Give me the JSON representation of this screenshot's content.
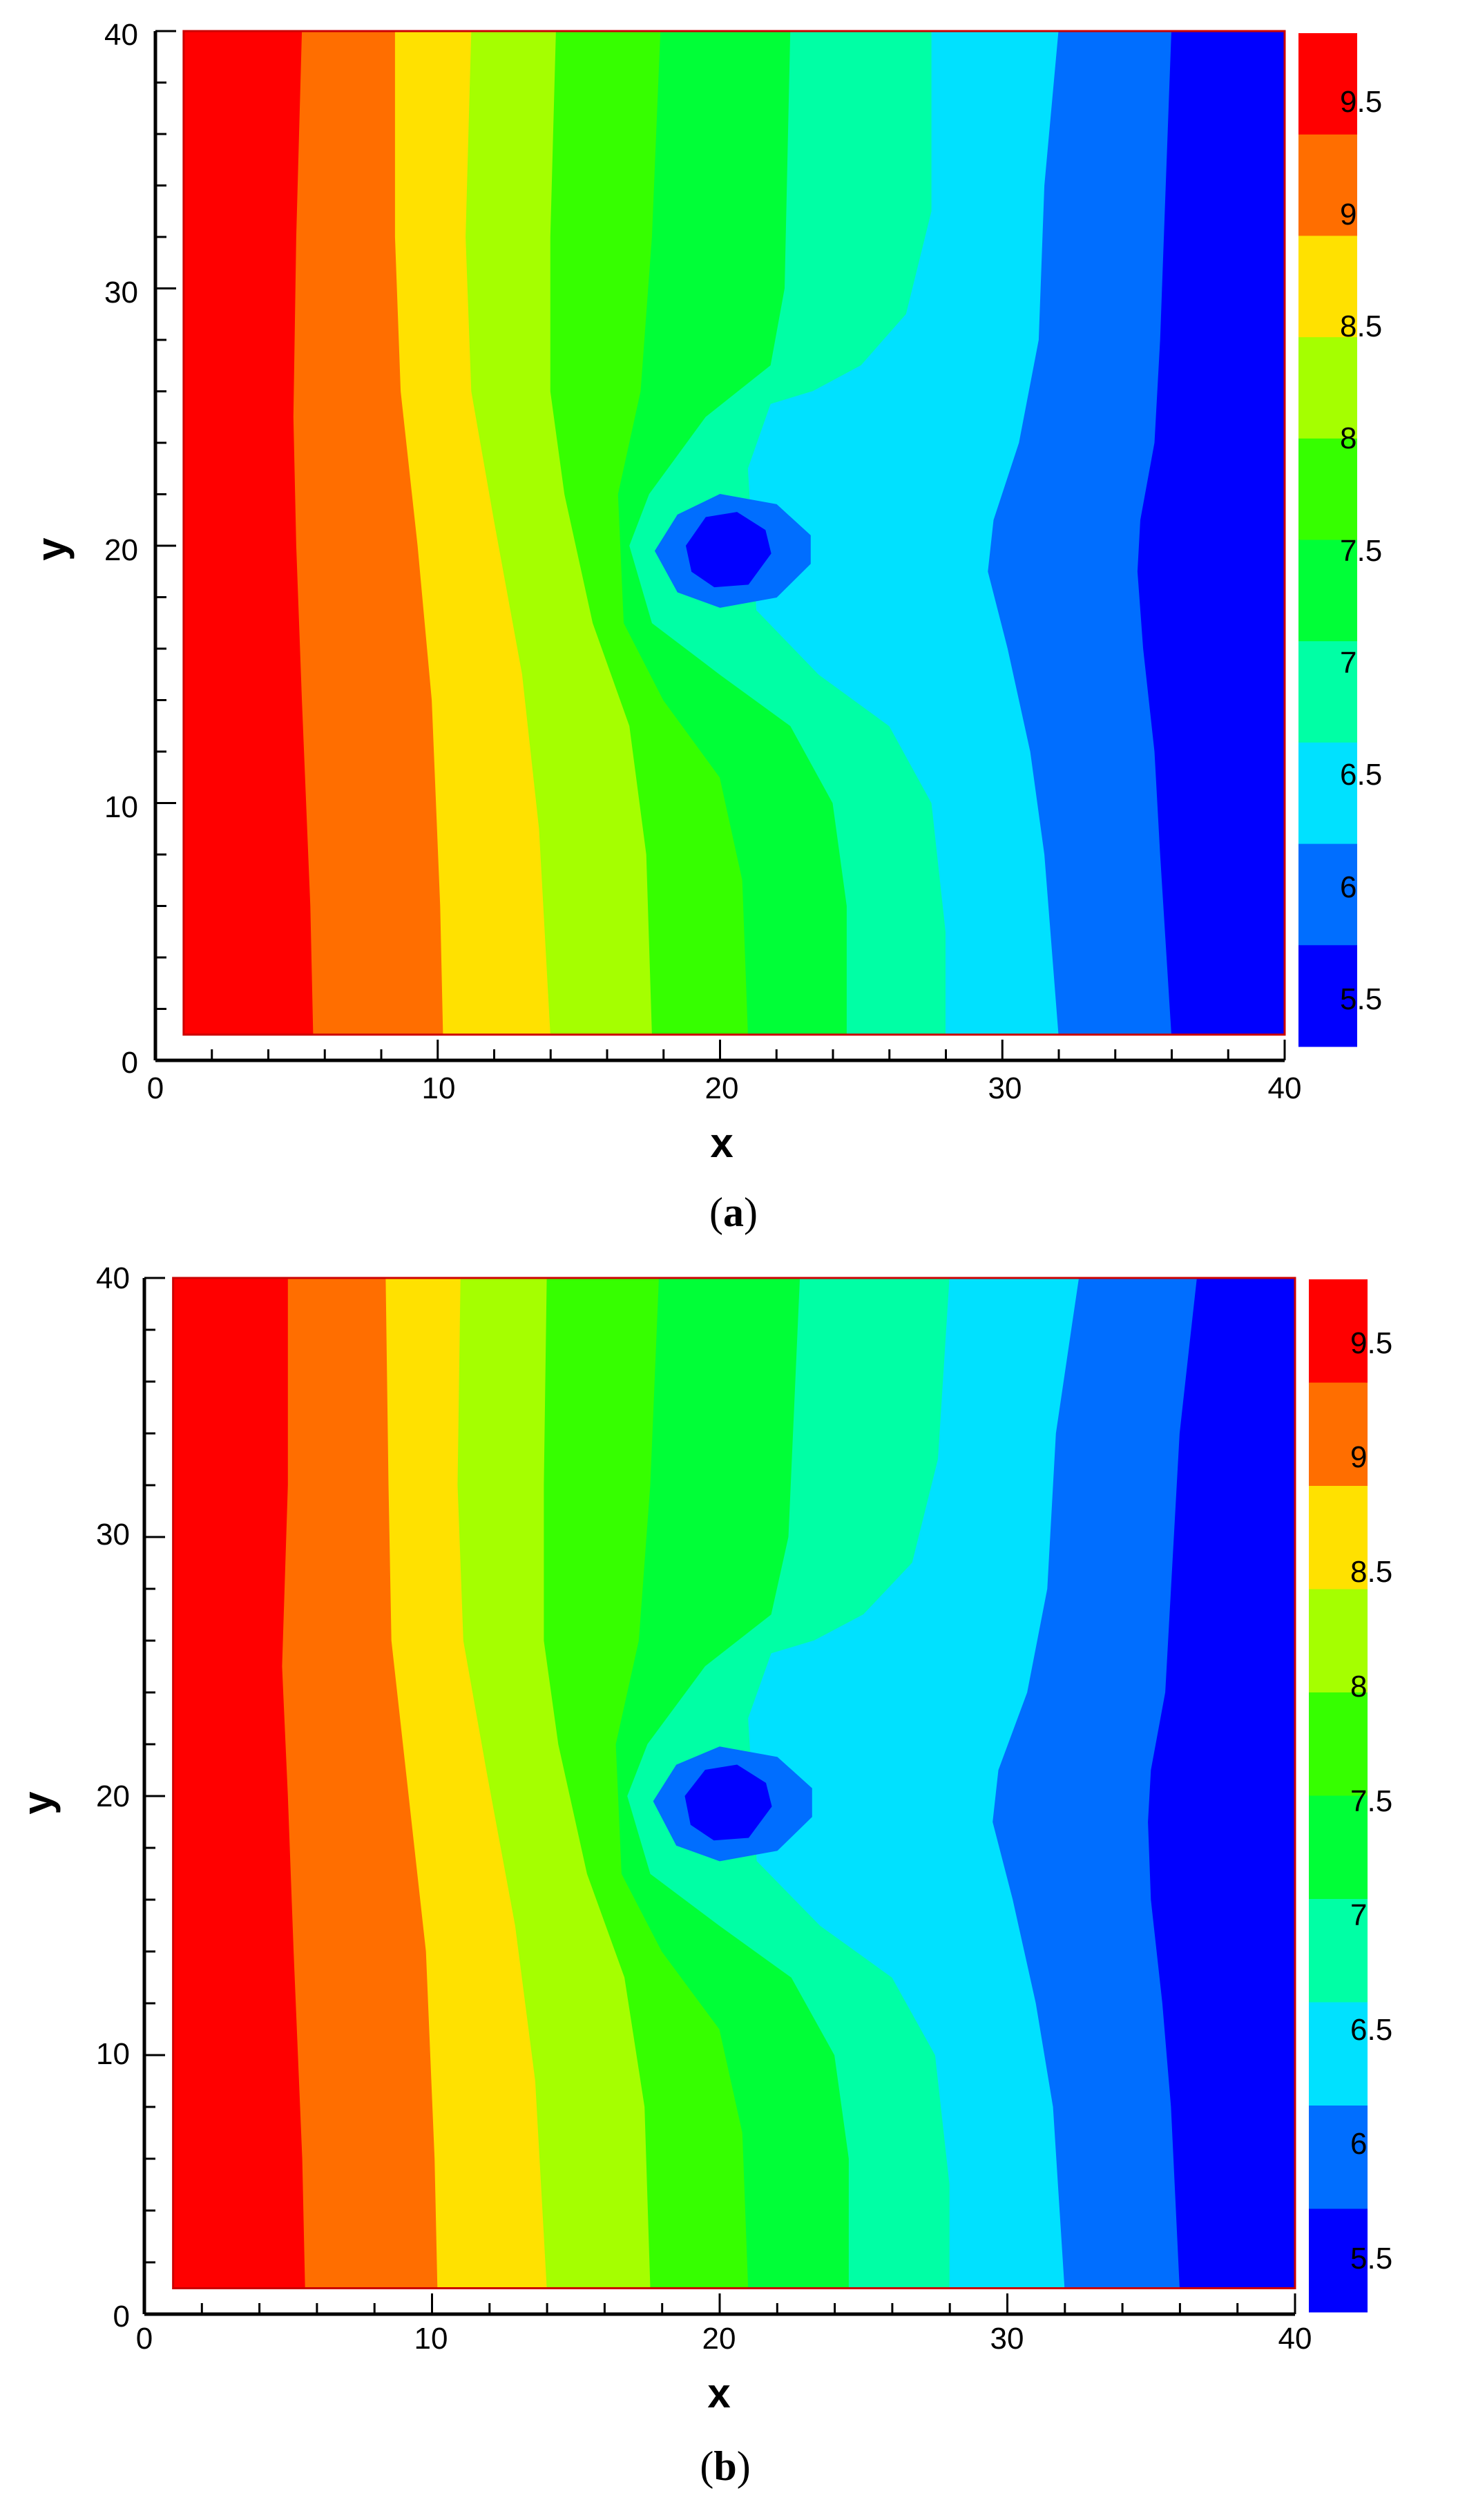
{
  "chart_data": [
    {
      "type": "contour",
      "caption_letter": "a",
      "xlabel": "x",
      "ylabel": "y",
      "xlim": [
        0,
        40
      ],
      "ylim": [
        0,
        40
      ],
      "domain": {
        "x": [
          1,
          40
        ],
        "y": [
          1,
          40
        ]
      },
      "x_ticks": [
        "0",
        "10",
        "20",
        "30",
        "40"
      ],
      "y_ticks": [
        "0",
        "10",
        "20",
        "30",
        "40"
      ],
      "legend_labels": [
        "9.5",
        "9",
        "8.5",
        "8",
        "7.5",
        "7",
        "6.5",
        "6",
        "5.5"
      ],
      "legend_placement": "right",
      "levels": [
        5.25,
        5.5,
        5.75,
        6,
        6.25,
        6.5,
        6.75,
        7,
        7.25,
        7.5,
        7.75,
        8,
        8.25,
        8.5,
        8.75,
        9,
        9.25,
        9.5,
        9.75
      ],
      "colors": [
        "#0000ff",
        "#006eff",
        "#00e1ff",
        "#00ffa5",
        "#00ff37",
        "#36ff00",
        "#a5ff00",
        "#ffe100",
        "#ff6e00",
        "#ff0000"
      ],
      "boundaries": [
        {
          "level": 9.5,
          "points": [
            [
              5.2,
              40
            ],
            [
              5.0,
              32
            ],
            [
              4.9,
              25
            ],
            [
              5.0,
              20
            ],
            [
              5.2,
              14
            ],
            [
              5.5,
              6
            ],
            [
              5.6,
              1
            ]
          ]
        },
        {
          "level": 9.0,
          "points": [
            [
              8.5,
              40
            ],
            [
              8.5,
              32
            ],
            [
              8.7,
              26
            ],
            [
              9.3,
              20
            ],
            [
              9.8,
              14
            ],
            [
              10.1,
              6
            ],
            [
              10.2,
              1
            ]
          ]
        },
        {
          "level": 8.5,
          "points": [
            [
              11.2,
              40
            ],
            [
              11.0,
              32
            ],
            [
              11.2,
              26
            ],
            [
              12.0,
              21
            ],
            [
              13.0,
              15
            ],
            [
              13.6,
              9
            ],
            [
              14.0,
              1
            ]
          ]
        },
        {
          "level": 8.0,
          "points": [
            [
              14.2,
              40
            ],
            [
              14.0,
              32
            ],
            [
              14.0,
              26
            ],
            [
              14.5,
              22
            ],
            [
              15.5,
              17
            ],
            [
              16.8,
              13
            ],
            [
              17.4,
              8
            ],
            [
              17.6,
              1
            ]
          ]
        },
        {
          "level": 7.5,
          "points": [
            [
              17.9,
              40
            ],
            [
              17.6,
              32
            ],
            [
              17.2,
              26
            ],
            [
              16.4,
              22
            ],
            [
              16.6,
              17
            ],
            [
              18.0,
              14
            ],
            [
              20.0,
              11
            ],
            [
              20.8,
              7
            ],
            [
              21.0,
              1
            ]
          ]
        },
        {
          "level": 7.0,
          "points": [
            [
              22.5,
              40
            ],
            [
              22.3,
              30
            ],
            [
              21.8,
              27
            ],
            [
              19.5,
              25
            ],
            [
              17.5,
              22
            ],
            [
              16.8,
              20
            ],
            [
              17.6,
              17
            ],
            [
              20.0,
              15
            ],
            [
              22.5,
              13
            ],
            [
              24.0,
              10
            ],
            [
              24.5,
              6
            ],
            [
              24.5,
              1
            ]
          ]
        },
        {
          "level": 6.5,
          "points": [
            [
              27.5,
              40
            ],
            [
              27.5,
              33
            ],
            [
              26.6,
              29
            ],
            [
              25.0,
              27
            ],
            [
              23.3,
              26
            ],
            [
              21.8,
              25.5
            ],
            [
              21.0,
              23
            ],
            [
              21.3,
              17.5
            ],
            [
              23.5,
              15
            ],
            [
              26.0,
              13
            ],
            [
              27.5,
              10
            ],
            [
              28.0,
              5
            ],
            [
              28.0,
              1
            ]
          ]
        },
        {
          "level": 6.0,
          "points": [
            [
              32.0,
              40
            ],
            [
              31.5,
              34
            ],
            [
              31.3,
              28
            ],
            [
              30.6,
              24
            ],
            [
              29.7,
              21
            ],
            [
              29.5,
              19
            ],
            [
              30.2,
              16
            ],
            [
              31.0,
              12
            ],
            [
              31.5,
              8
            ],
            [
              32.0,
              1
            ]
          ]
        },
        {
          "level": 5.5,
          "points": [
            [
              36.0,
              40
            ],
            [
              35.8,
              34
            ],
            [
              35.6,
              28
            ],
            [
              35.4,
              24
            ],
            [
              34.9,
              21
            ],
            [
              34.8,
              19
            ],
            [
              35.0,
              16
            ],
            [
              35.4,
              12
            ],
            [
              35.6,
              8
            ],
            [
              36.0,
              1
            ]
          ]
        }
      ],
      "blob_outer": [
        [
          17.7,
          19.8
        ],
        [
          18.5,
          21.2
        ],
        [
          20.0,
          22.0
        ],
        [
          22.0,
          21.6
        ],
        [
          23.2,
          20.4
        ],
        [
          23.2,
          19.3
        ],
        [
          22.0,
          18.0
        ],
        [
          20.0,
          17.6
        ],
        [
          18.5,
          18.2
        ]
      ],
      "blob_inner": [
        [
          18.8,
          20.0
        ],
        [
          19.5,
          21.1
        ],
        [
          20.6,
          21.3
        ],
        [
          21.6,
          20.6
        ],
        [
          21.8,
          19.7
        ],
        [
          21.0,
          18.5
        ],
        [
          19.8,
          18.4
        ],
        [
          19.0,
          19.0
        ]
      ]
    },
    {
      "type": "contour",
      "caption_letter": "b",
      "xlabel": "x",
      "ylabel": "y",
      "xlim": [
        0,
        40
      ],
      "ylim": [
        0,
        40
      ],
      "domain": {
        "x": [
          1,
          40
        ],
        "y": [
          1,
          40
        ]
      },
      "x_ticks": [
        "0",
        "10",
        "20",
        "30",
        "40"
      ],
      "y_ticks": [
        "0",
        "10",
        "20",
        "30",
        "40"
      ],
      "legend_labels": [
        "9.5",
        "9",
        "8.5",
        "8",
        "7.5",
        "7",
        "6.5",
        "6",
        "5.5"
      ],
      "legend_placement": "right",
      "levels": [
        5.25,
        5.5,
        5.75,
        6,
        6.25,
        6.5,
        6.75,
        7,
        7.25,
        7.5,
        7.75,
        8,
        8.25,
        8.5,
        8.75,
        9,
        9.25,
        9.5,
        9.75
      ],
      "colors": [
        "#0000ff",
        "#006eff",
        "#00e1ff",
        "#00ffa5",
        "#00ff37",
        "#36ff00",
        "#a5ff00",
        "#ffe100",
        "#ff6e00",
        "#ff0000"
      ],
      "boundaries": [
        {
          "level": 9.5,
          "points": [
            [
              5.0,
              40
            ],
            [
              5.0,
              32
            ],
            [
              4.8,
              25
            ],
            [
              5.0,
              20
            ],
            [
              5.2,
              14
            ],
            [
              5.5,
              6
            ],
            [
              5.6,
              1
            ]
          ]
        },
        {
          "level": 9.0,
          "points": [
            [
              8.4,
              40
            ],
            [
              8.5,
              32
            ],
            [
              8.6,
              26
            ],
            [
              9.2,
              20
            ],
            [
              9.8,
              14
            ],
            [
              10.1,
              6
            ],
            [
              10.2,
              1
            ]
          ]
        },
        {
          "level": 8.5,
          "points": [
            [
              11.0,
              40
            ],
            [
              10.9,
              32
            ],
            [
              11.1,
              26
            ],
            [
              11.9,
              21
            ],
            [
              12.9,
              15
            ],
            [
              13.6,
              9
            ],
            [
              14.0,
              1
            ]
          ]
        },
        {
          "level": 8.0,
          "points": [
            [
              14.0,
              40
            ],
            [
              13.9,
              32
            ],
            [
              13.9,
              26
            ],
            [
              14.4,
              22
            ],
            [
              15.4,
              17
            ],
            [
              16.7,
              13
            ],
            [
              17.4,
              8
            ],
            [
              17.6,
              1
            ]
          ]
        },
        {
          "level": 7.5,
          "points": [
            [
              17.9,
              40
            ],
            [
              17.6,
              32
            ],
            [
              17.2,
              26
            ],
            [
              16.4,
              22
            ],
            [
              16.6,
              17
            ],
            [
              18.0,
              14
            ],
            [
              20.0,
              11
            ],
            [
              20.8,
              7
            ],
            [
              21.0,
              1
            ]
          ]
        },
        {
          "level": 7.0,
          "points": [
            [
              22.8,
              40
            ],
            [
              22.4,
              30
            ],
            [
              21.8,
              27
            ],
            [
              19.5,
              25
            ],
            [
              17.5,
              22
            ],
            [
              16.8,
              20
            ],
            [
              17.6,
              17
            ],
            [
              20.0,
              15
            ],
            [
              22.5,
              13
            ],
            [
              24.0,
              10
            ],
            [
              24.5,
              6
            ],
            [
              24.5,
              1
            ]
          ]
        },
        {
          "level": 6.5,
          "points": [
            [
              28.0,
              40
            ],
            [
              27.6,
              33
            ],
            [
              26.7,
              29
            ],
            [
              25.0,
              27
            ],
            [
              23.3,
              26
            ],
            [
              21.8,
              25.5
            ],
            [
              21.0,
              23
            ],
            [
              21.3,
              17.5
            ],
            [
              23.5,
              15
            ],
            [
              26.0,
              13
            ],
            [
              27.5,
              10
            ],
            [
              28.0,
              5
            ],
            [
              28.0,
              1
            ]
          ]
        },
        {
          "level": 6.0,
          "points": [
            [
              32.5,
              40
            ],
            [
              31.7,
              34
            ],
            [
              31.4,
              28
            ],
            [
              30.7,
              24
            ],
            [
              29.7,
              21
            ],
            [
              29.5,
              19
            ],
            [
              30.2,
              16
            ],
            [
              31.0,
              12
            ],
            [
              31.6,
              8
            ],
            [
              32.0,
              1
            ]
          ]
        },
        {
          "level": 5.5,
          "points": [
            [
              36.6,
              40
            ],
            [
              36.0,
              34
            ],
            [
              35.7,
              28
            ],
            [
              35.5,
              24
            ],
            [
              35.0,
              21
            ],
            [
              34.9,
              19
            ],
            [
              35.0,
              16
            ],
            [
              35.4,
              12
            ],
            [
              35.7,
              8
            ],
            [
              36.0,
              1
            ]
          ]
        }
      ],
      "blob_outer": [
        [
          17.7,
          19.8
        ],
        [
          18.5,
          21.2
        ],
        [
          20.0,
          21.9
        ],
        [
          22.0,
          21.5
        ],
        [
          23.2,
          20.3
        ],
        [
          23.2,
          19.2
        ],
        [
          22.0,
          17.9
        ],
        [
          20.0,
          17.5
        ],
        [
          18.5,
          18.1
        ]
      ],
      "blob_inner": [
        [
          18.8,
          20.0
        ],
        [
          19.5,
          21.0
        ],
        [
          20.6,
          21.2
        ],
        [
          21.6,
          20.5
        ],
        [
          21.8,
          19.6
        ],
        [
          21.0,
          18.4
        ],
        [
          19.8,
          18.3
        ],
        [
          19.0,
          18.9
        ]
      ]
    }
  ]
}
